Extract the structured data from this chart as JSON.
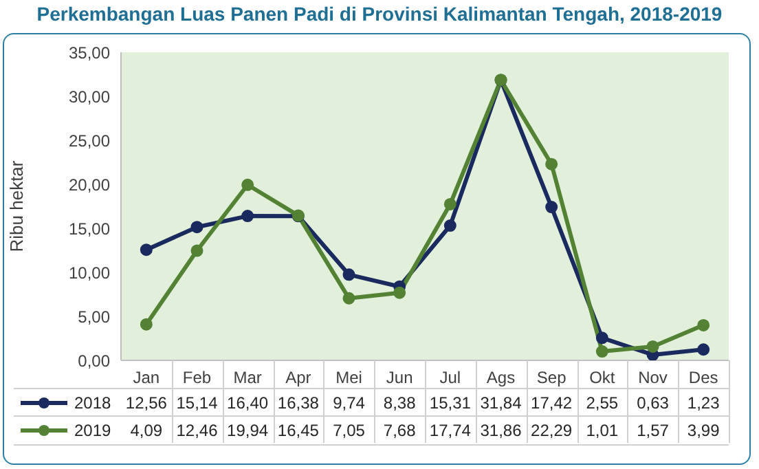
{
  "chart_data": {
    "type": "line",
    "title": "Perkembangan Luas Panen Padi di Provinsi Kalimantan Tengah, 2018-2019",
    "ylabel": "Ribu hektar",
    "categories": [
      "Jan",
      "Feb",
      "Mar",
      "Apr",
      "Mei",
      "Jun",
      "Jul",
      "Ags",
      "Sep",
      "Okt",
      "Nov",
      "Des"
    ],
    "series": [
      {
        "name": "2018",
        "color": "#1b2a5e",
        "values": [
          12.56,
          15.14,
          16.4,
          16.38,
          9.74,
          8.38,
          15.31,
          31.84,
          17.42,
          2.55,
          0.63,
          1.23
        ],
        "value_labels": [
          "12,56",
          "15,14",
          "16,40",
          "16,38",
          "9,74",
          "8,38",
          "15,31",
          "31,84",
          "17,42",
          "2,55",
          "0,63",
          "1,23"
        ]
      },
      {
        "name": "2019",
        "color": "#548235",
        "values": [
          4.09,
          12.46,
          19.94,
          16.45,
          7.05,
          7.68,
          17.74,
          31.86,
          22.29,
          1.01,
          1.57,
          3.99
        ],
        "value_labels": [
          "4,09",
          "12,46",
          "19,94",
          "16,45",
          "7,05",
          "7,68",
          "17,74",
          "31,86",
          "22,29",
          "1,01",
          "1,57",
          "3,99"
        ]
      }
    ],
    "ylim": [
      0,
      35
    ],
    "yticks": [
      {
        "value": 0,
        "label": "0,00"
      },
      {
        "value": 5,
        "label": "5,00"
      },
      {
        "value": 10,
        "label": "10,00"
      },
      {
        "value": 15,
        "label": "15,00"
      },
      {
        "value": 20,
        "label": "20,00"
      },
      {
        "value": 25,
        "label": "25,00"
      },
      {
        "value": 30,
        "label": "30,00"
      },
      {
        "value": 35,
        "label": "35,00"
      }
    ],
    "marker": "circle",
    "line_style": "solid",
    "legend": "bottom"
  }
}
